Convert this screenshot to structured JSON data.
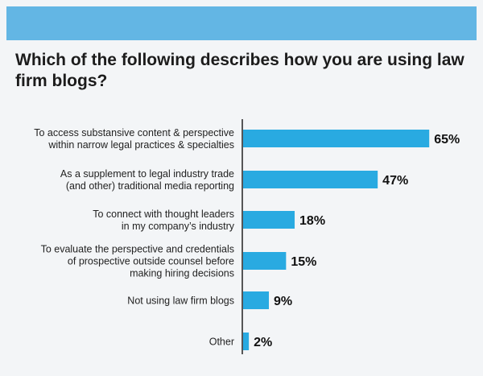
{
  "header": {
    "title": "Which of the following describes how you are using law firm blogs?",
    "banner_color": "#63b6e4"
  },
  "chart_data": {
    "type": "bar",
    "orientation": "horizontal",
    "categories": [
      [
        "To access substansive content & perspective",
        "within narrow legal practices & specialties"
      ],
      [
        "As a supplement to legal industry trade",
        "(and other) traditional media reporting"
      ],
      [
        "To connect with thought leaders",
        "in my company’s industry"
      ],
      [
        "To evaluate the perspective and credentials",
        "of prospective outside counsel before",
        "making hiring decisions"
      ],
      [
        "Not using law firm blogs"
      ],
      [
        "Other"
      ]
    ],
    "values": [
      65,
      47,
      18,
      15,
      9,
      2
    ],
    "value_labels": [
      "65%",
      "47%",
      "18%",
      "15%",
      "9%",
      "2%"
    ],
    "xlim": [
      0,
      100
    ],
    "bar_color": "#29aae1",
    "grid": false
  }
}
